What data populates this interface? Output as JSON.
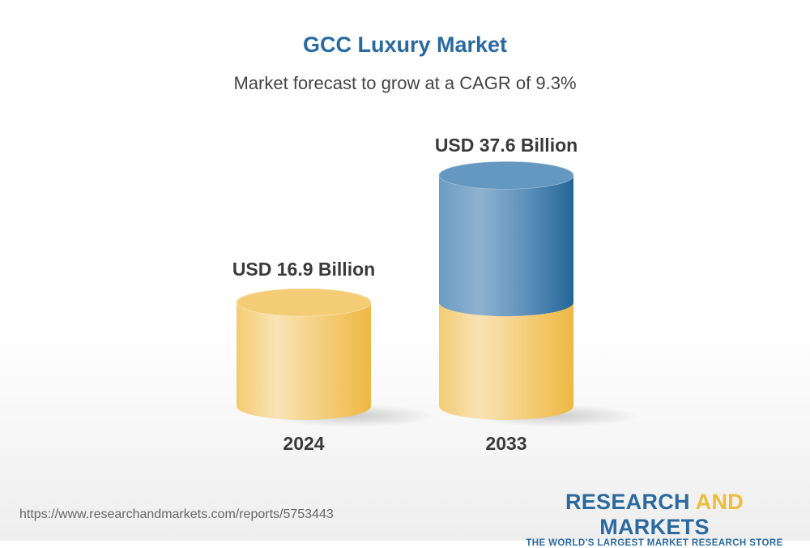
{
  "header": {
    "title": "GCC Luxury Market",
    "subtitle": "Market forecast to grow at a CAGR of 9.3%"
  },
  "chart_data": {
    "type": "bar",
    "style": "3d-cylinder",
    "title": "GCC Luxury Market",
    "subtitle": "Market forecast to grow at a CAGR of 9.3%",
    "categories": [
      "2024",
      "2033"
    ],
    "values": [
      16.9,
      37.6
    ],
    "unit": "USD Billion",
    "data_labels": [
      "USD 16.9 Billion",
      "USD 37.6 Billion"
    ],
    "grid": false,
    "colors": {
      "base": "#f2c054",
      "growth": "#2a6aa0"
    }
  },
  "footer": {
    "url": "https://www.researchandmarkets.com/reports/5753443",
    "logo": {
      "part1": "RESEARCH ",
      "part2": "AND",
      "part3": " MARKETS",
      "tagline": "THE WORLD'S LARGEST MARKET RESEARCH STORE"
    }
  }
}
